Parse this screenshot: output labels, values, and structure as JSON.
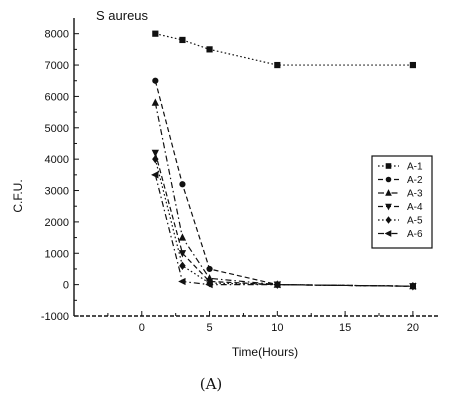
{
  "chart_data": {
    "type": "line",
    "title": "S aureus",
    "xlabel": "Time(Hours)",
    "ylabel": "C.F.U.",
    "xlim": [
      -5,
      22
    ],
    "ylim": [
      -1000,
      8500
    ],
    "x_ticks": [
      0,
      5,
      10,
      15,
      20
    ],
    "y_ticks": [
      -1000,
      0,
      1000,
      2000,
      3000,
      4000,
      5000,
      6000,
      7000,
      8000
    ],
    "x_tick_labels": [
      "0",
      "5",
      "10",
      "15",
      "20"
    ],
    "y_tick_labels": [
      "-1000",
      "0",
      "1000",
      "2000",
      "3000",
      "4000",
      "5000",
      "6000",
      "7000",
      "8000"
    ],
    "legend_position": "right",
    "caption": "(A)",
    "series": [
      {
        "name": "A-1",
        "marker": "square",
        "dash": "dot",
        "x": [
          1,
          3,
          5,
          10,
          20
        ],
        "y": [
          8000,
          7800,
          7500,
          7000,
          7000
        ]
      },
      {
        "name": "A-2",
        "marker": "circle",
        "dash": "dash",
        "x": [
          1,
          3,
          5,
          10,
          20
        ],
        "y": [
          6500,
          3200,
          500,
          0,
          -50
        ]
      },
      {
        "name": "A-3",
        "marker": "triangle-up",
        "dash": "dashdot",
        "x": [
          1,
          3,
          5,
          10,
          20
        ],
        "y": [
          5800,
          1500,
          200,
          0,
          -50
        ]
      },
      {
        "name": "A-4",
        "marker": "triangle-down",
        "dash": "dash",
        "x": [
          1,
          3,
          5,
          10,
          20
        ],
        "y": [
          4200,
          1000,
          100,
          0,
          -50
        ]
      },
      {
        "name": "A-5",
        "marker": "diamond",
        "dash": "dot",
        "x": [
          1,
          3,
          5,
          10,
          20
        ],
        "y": [
          4000,
          600,
          50,
          0,
          -50
        ]
      },
      {
        "name": "A-6",
        "marker": "triangle-left",
        "dash": "dashdot",
        "x": [
          1,
          3,
          5,
          10,
          20
        ],
        "y": [
          3500,
          100,
          0,
          0,
          -50
        ]
      }
    ]
  }
}
